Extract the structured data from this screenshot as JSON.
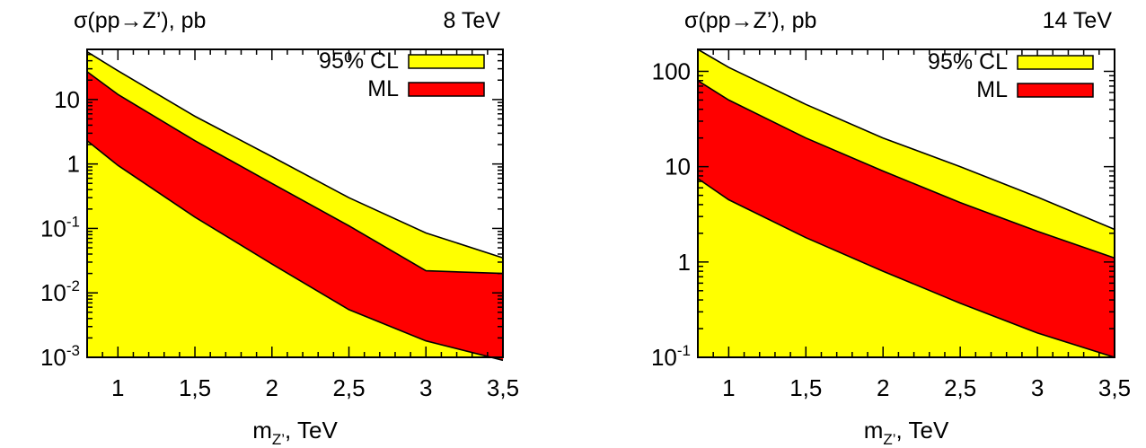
{
  "colors": {
    "yellow": "#ffff00",
    "red": "#ff0000",
    "edge": "#000000",
    "background": "#ffffff"
  },
  "chart_data": [
    {
      "type": "area",
      "title": "σ(pp→Z’), pb",
      "energy_label": "8 TeV",
      "xlabel": {
        "main": "m",
        "sub": "Z’",
        "rest": ", TeV"
      },
      "xlim": [
        0.8,
        3.5
      ],
      "ylim": [
        0.001,
        60
      ],
      "yscale": "log",
      "grid": false,
      "legend_position": "top-right",
      "x_ticks": [
        1,
        1.5,
        2,
        2.5,
        3,
        3.5
      ],
      "x_tick_labels": [
        "1",
        "1,5",
        "2",
        "2,5",
        "3",
        "3,5"
      ],
      "y_ticks": [
        {
          "value": 10,
          "base": "10",
          "exp": ""
        },
        {
          "value": 1,
          "base": "1",
          "exp": ""
        },
        {
          "value": 0.1,
          "base": "10",
          "exp": "-1"
        },
        {
          "value": 0.01,
          "base": "10",
          "exp": "-2"
        },
        {
          "value": 0.001,
          "base": "10",
          "exp": "-3"
        }
      ],
      "x": [
        0.8,
        1.0,
        1.5,
        2.0,
        2.5,
        3.0,
        3.5
      ],
      "series": [
        {
          "name": "95% CL",
          "color_key": "yellow",
          "upper": [
            55,
            28,
            5.5,
            1.3,
            0.3,
            0.085,
            0.035
          ],
          "lower": [
            0.001,
            0.001,
            0.001,
            0.001,
            0.001,
            0.001,
            0.001
          ]
        },
        {
          "name": "ML",
          "color_key": "red",
          "upper": [
            27,
            12,
            2.3,
            0.5,
            0.11,
            0.022,
            0.02
          ],
          "lower": [
            2.3,
            0.95,
            0.15,
            0.028,
            0.0055,
            0.0018,
            0.0009
          ]
        }
      ]
    },
    {
      "type": "area",
      "title": "σ(pp→Z’), pb",
      "energy_label": "14 TeV",
      "xlabel": {
        "main": "m",
        "sub": "Z’",
        "rest": ", TeV"
      },
      "xlim": [
        0.8,
        3.5
      ],
      "ylim": [
        0.1,
        170
      ],
      "yscale": "log",
      "grid": false,
      "legend_position": "top-right",
      "x_ticks": [
        1,
        1.5,
        2,
        2.5,
        3,
        3.5
      ],
      "x_tick_labels": [
        "1",
        "1,5",
        "2",
        "2,5",
        "3",
        "3,5"
      ],
      "y_ticks": [
        {
          "value": 100,
          "base": "100",
          "exp": ""
        },
        {
          "value": 10,
          "base": "10",
          "exp": ""
        },
        {
          "value": 1,
          "base": "1",
          "exp": ""
        },
        {
          "value": 0.1,
          "base": "10",
          "exp": "-1"
        }
      ],
      "x": [
        0.8,
        1.0,
        1.5,
        2.0,
        2.5,
        3.0,
        3.5
      ],
      "series": [
        {
          "name": "95% CL",
          "color_key": "yellow",
          "upper": [
            170,
            110,
            45,
            20,
            10,
            4.8,
            2.2
          ],
          "lower": [
            0.1,
            0.1,
            0.1,
            0.1,
            0.1,
            0.1,
            0.1
          ]
        },
        {
          "name": "ML",
          "color_key": "red",
          "upper": [
            80,
            50,
            20,
            9,
            4.2,
            2.1,
            1.1
          ],
          "lower": [
            7.5,
            4.5,
            1.8,
            0.8,
            0.37,
            0.18,
            0.1
          ]
        }
      ]
    }
  ]
}
